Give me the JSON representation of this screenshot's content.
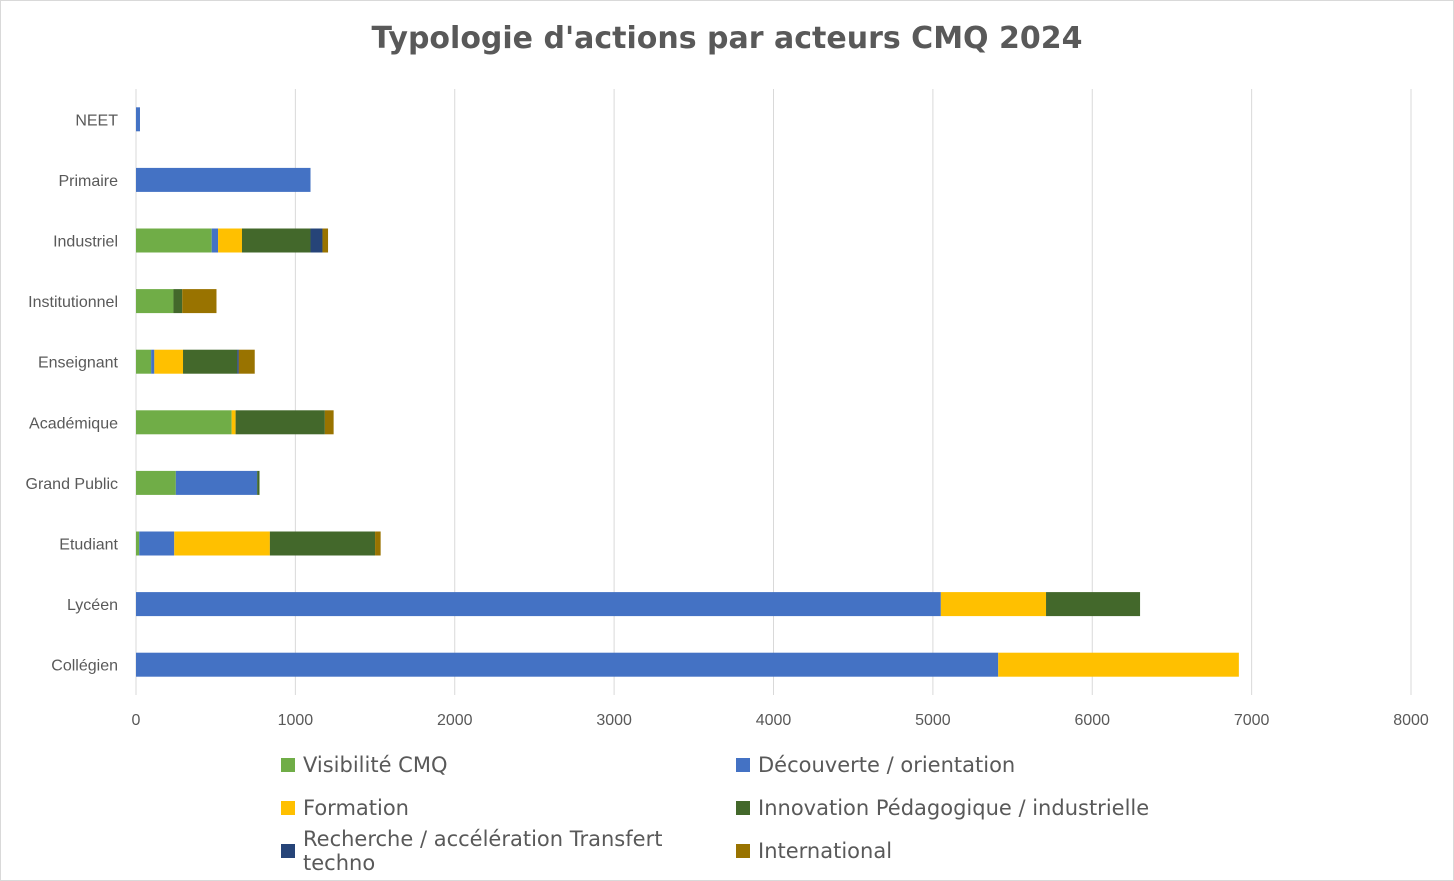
{
  "chart_data": {
    "type": "bar",
    "orientation": "horizontal",
    "stacked": true,
    "title": "Typologie d'actions par acteurs CMQ 2024",
    "categories": [
      "NEET",
      "Primaire",
      "Industriel",
      "Institutionnel",
      "Enseignant",
      "Académique",
      "Grand Public",
      "Etudiant",
      "Lycéen",
      "Collégien"
    ],
    "series": [
      {
        "name": "Visibilité CMQ",
        "color": "#70ad47",
        "values": [
          0,
          0,
          475,
          235,
          95,
          600,
          250,
          20,
          0,
          0
        ]
      },
      {
        "name": "Découverte / orientation",
        "color": "#4472c4",
        "values": [
          25,
          1095,
          40,
          0,
          20,
          0,
          510,
          220,
          5050,
          5410
        ]
      },
      {
        "name": "Formation",
        "color": "#ffc000",
        "values": [
          0,
          0,
          150,
          0,
          180,
          25,
          0,
          600,
          660,
          1510
        ]
      },
      {
        "name": "Innovation Pédagogique / industrielle",
        "color": "#43682b",
        "values": [
          0,
          0,
          430,
          55,
          340,
          560,
          15,
          660,
          590,
          0
        ]
      },
      {
        "name": "Recherche / accélération Transfert techno",
        "color": "#264478",
        "values": [
          0,
          0,
          75,
          0,
          10,
          0,
          0,
          0,
          0,
          0
        ]
      },
      {
        "name": "International",
        "color": "#997300",
        "values": [
          0,
          0,
          35,
          215,
          100,
          55,
          0,
          35,
          0,
          0
        ]
      }
    ],
    "xlim": [
      0,
      8000
    ],
    "xticks": [
      0,
      1000,
      2000,
      3000,
      4000,
      5000,
      6000,
      7000,
      8000
    ],
    "grid": true,
    "legend_position": "bottom"
  }
}
